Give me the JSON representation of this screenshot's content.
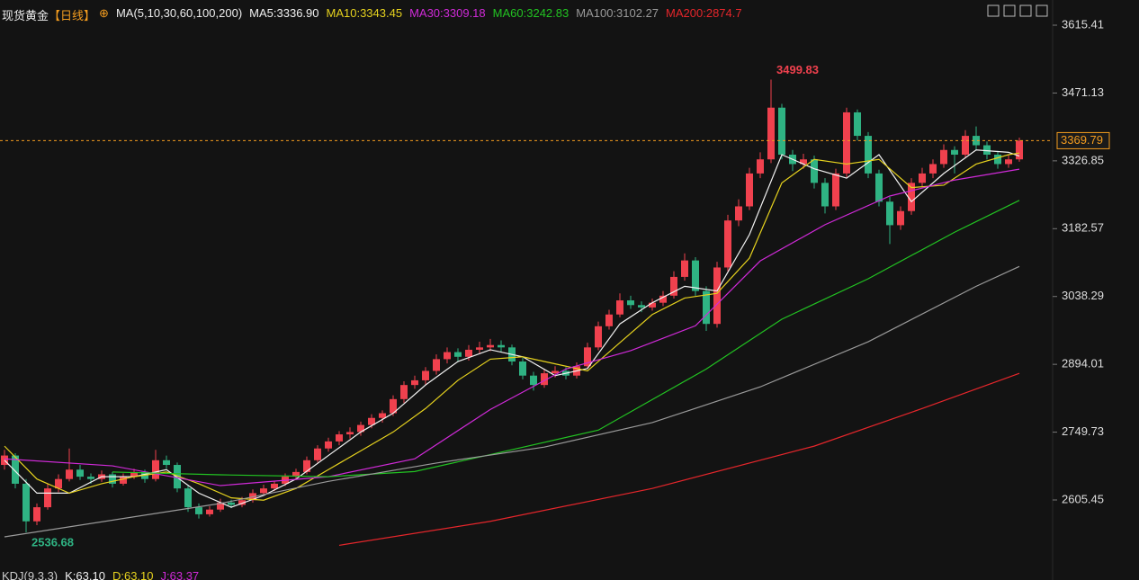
{
  "chart_data": {
    "type": "candlestick",
    "title": "现货黄金",
    "period": "【日线】",
    "indicator_label": "MA(5,10,30,60,100,200)",
    "ylim": [
      2463.9,
      3669.0
    ],
    "yticks": [
      3615.41,
      3471.13,
      3326.85,
      3182.57,
      3038.29,
      2894.01,
      2749.73,
      2605.45
    ],
    "up_color": "#f0414e",
    "down_color": "#2fb383",
    "candles": [
      [
        2680,
        2712,
        2670,
        2700
      ],
      [
        2700,
        2705,
        2630,
        2640
      ],
      [
        2640,
        2650,
        2536.68,
        2560
      ],
      [
        2560,
        2598,
        2552,
        2590
      ],
      [
        2590,
        2640,
        2585,
        2630
      ],
      [
        2630,
        2660,
        2622,
        2650
      ],
      [
        2650,
        2715,
        2645,
        2670
      ],
      [
        2670,
        2680,
        2648,
        2655
      ],
      [
        2655,
        2662,
        2640,
        2650
      ],
      [
        2650,
        2668,
        2644,
        2660
      ],
      [
        2660,
        2665,
        2632,
        2640
      ],
      [
        2640,
        2662,
        2636,
        2655
      ],
      [
        2655,
        2672,
        2650,
        2665
      ],
      [
        2665,
        2670,
        2642,
        2650
      ],
      [
        2650,
        2712,
        2645,
        2690
      ],
      [
        2690,
        2700,
        2672,
        2680
      ],
      [
        2680,
        2685,
        2622,
        2630
      ],
      [
        2630,
        2636,
        2580,
        2590
      ],
      [
        2590,
        2598,
        2566,
        2575
      ],
      [
        2575,
        2592,
        2570,
        2585
      ],
      [
        2585,
        2608,
        2580,
        2600
      ],
      [
        2600,
        2606,
        2588,
        2595
      ],
      [
        2595,
        2612,
        2590,
        2605
      ],
      [
        2605,
        2628,
        2600,
        2620
      ],
      [
        2620,
        2638,
        2614,
        2630
      ],
      [
        2630,
        2646,
        2624,
        2640
      ],
      [
        2640,
        2662,
        2635,
        2655
      ],
      [
        2655,
        2672,
        2648,
        2665
      ],
      [
        2665,
        2698,
        2660,
        2690
      ],
      [
        2690,
        2722,
        2685,
        2715
      ],
      [
        2715,
        2738,
        2708,
        2730
      ],
      [
        2730,
        2752,
        2722,
        2745
      ],
      [
        2745,
        2760,
        2736,
        2750
      ],
      [
        2750,
        2772,
        2742,
        2765
      ],
      [
        2765,
        2788,
        2758,
        2780
      ],
      [
        2780,
        2796,
        2770,
        2790
      ],
      [
        2790,
        2828,
        2784,
        2820
      ],
      [
        2820,
        2858,
        2812,
        2850
      ],
      [
        2850,
        2870,
        2842,
        2860
      ],
      [
        2860,
        2888,
        2850,
        2880
      ],
      [
        2880,
        2915,
        2872,
        2905
      ],
      [
        2905,
        2930,
        2896,
        2920
      ],
      [
        2920,
        2928,
        2900,
        2910
      ],
      [
        2910,
        2935,
        2902,
        2925
      ],
      [
        2925,
        2942,
        2916,
        2930
      ],
      [
        2930,
        2948,
        2922,
        2935
      ],
      [
        2935,
        2945,
        2920,
        2930
      ],
      [
        2930,
        2936,
        2892,
        2900
      ],
      [
        2900,
        2908,
        2862,
        2870
      ],
      [
        2870,
        2878,
        2838,
        2850
      ],
      [
        2850,
        2884,
        2844,
        2875
      ],
      [
        2875,
        2890,
        2866,
        2880
      ],
      [
        2880,
        2888,
        2862,
        2870
      ],
      [
        2870,
        2898,
        2864,
        2890
      ],
      [
        2890,
        2940,
        2884,
        2930
      ],
      [
        2930,
        2985,
        2924,
        2975
      ],
      [
        2975,
        3010,
        2968,
        3000
      ],
      [
        3000,
        3045,
        2994,
        3030
      ],
      [
        3030,
        3040,
        3012,
        3020
      ],
      [
        3020,
        3028,
        3005,
        3015
      ],
      [
        3015,
        3034,
        3008,
        3025
      ],
      [
        3025,
        3050,
        3018,
        3040
      ],
      [
        3040,
        3092,
        3034,
        3080
      ],
      [
        3080,
        3130,
        3072,
        3115
      ],
      [
        3115,
        3122,
        3040,
        3050
      ],
      [
        3050,
        3060,
        2965,
        2980
      ],
      [
        2980,
        3112,
        2972,
        3100
      ],
      [
        3100,
        3212,
        3092,
        3200
      ],
      [
        3200,
        3245,
        3188,
        3230
      ],
      [
        3230,
        3312,
        3222,
        3300
      ],
      [
        3300,
        3345,
        3290,
        3330
      ],
      [
        3330,
        3499.83,
        3322,
        3440
      ],
      [
        3440,
        3448,
        3330,
        3340
      ],
      [
        3340,
        3350,
        3305,
        3320
      ],
      [
        3320,
        3342,
        3310,
        3330
      ],
      [
        3330,
        3338,
        3268,
        3280
      ],
      [
        3280,
        3290,
        3215,
        3230
      ],
      [
        3230,
        3310,
        3222,
        3300
      ],
      [
        3300,
        3440,
        3292,
        3430
      ],
      [
        3430,
        3436,
        3370,
        3380
      ],
      [
        3380,
        3388,
        3290,
        3300
      ],
      [
        3300,
        3308,
        3230,
        3240
      ],
      [
        3240,
        3250,
        3150,
        3190
      ],
      [
        3190,
        3230,
        3180,
        3220
      ],
      [
        3220,
        3290,
        3212,
        3280
      ],
      [
        3280,
        3312,
        3272,
        3300
      ],
      [
        3300,
        3330,
        3290,
        3320
      ],
      [
        3320,
        3362,
        3312,
        3350
      ],
      [
        3350,
        3358,
        3300,
        3340
      ],
      [
        3340,
        3392,
        3332,
        3380
      ],
      [
        3380,
        3400,
        3350,
        3360
      ],
      [
        3360,
        3368,
        3330,
        3340
      ],
      [
        3340,
        3348,
        3310,
        3320
      ],
      [
        3320,
        3340,
        3312,
        3330
      ],
      [
        3330,
        3376,
        3325,
        3369.79
      ]
    ],
    "series": [
      {
        "name": "MA5:3336.90",
        "color": "#f2f2f2",
        "x": [
          0,
          3,
          6,
          9,
          12,
          15,
          18,
          21,
          24,
          27,
          30,
          33,
          36,
          39,
          42,
          45,
          48,
          51,
          54,
          57,
          60,
          63,
          66,
          69,
          72,
          75,
          78,
          81,
          84,
          87,
          90,
          93,
          94
        ],
        "values": [
          2690,
          2620,
          2620,
          2655,
          2655,
          2670,
          2620,
          2590,
          2615,
          2650,
          2700,
          2750,
          2790,
          2850,
          2900,
          2925,
          2910,
          2870,
          2885,
          2980,
          3025,
          3060,
          3050,
          3170,
          3340,
          3310,
          3290,
          3340,
          3240,
          3300,
          3350,
          3345,
          3336.9
        ]
      },
      {
        "name": "MA10:3343.45",
        "color": "#e6d21e",
        "x": [
          0,
          3,
          6,
          9,
          12,
          15,
          18,
          21,
          24,
          27,
          30,
          33,
          36,
          39,
          42,
          45,
          48,
          51,
          54,
          57,
          60,
          63,
          66,
          69,
          72,
          75,
          78,
          81,
          84,
          87,
          90,
          93,
          94
        ],
        "values": [
          2720,
          2650,
          2620,
          2640,
          2655,
          2665,
          2640,
          2610,
          2605,
          2630,
          2670,
          2710,
          2750,
          2800,
          2860,
          2905,
          2910,
          2895,
          2880,
          2940,
          3000,
          3035,
          3045,
          3120,
          3280,
          3330,
          3320,
          3330,
          3270,
          3275,
          3320,
          3340,
          3343.45
        ]
      },
      {
        "name": "MA30:3309.18",
        "color": "#d02ad8",
        "x": [
          0,
          10,
          20,
          30,
          38,
          45,
          52,
          58,
          64,
          70,
          76,
          82,
          88,
          94
        ],
        "values": [
          2693,
          2678,
          2636,
          2655,
          2693,
          2798,
          2884,
          2923,
          2976,
          3114,
          3191,
          3252,
          3286,
          3309.18
        ]
      },
      {
        "name": "MA60:3242.83",
        "color": "#22c322",
        "x": [
          10,
          20,
          30,
          38,
          45,
          55,
          65,
          72,
          80,
          88,
          94
        ],
        "values": [
          2665,
          2659,
          2655,
          2666,
          2702,
          2754,
          2884,
          2990,
          3076,
          3175,
          3242.83
        ]
      },
      {
        "name": "MA100:3102.27",
        "color": "#9a9a9a",
        "x": [
          0,
          20,
          30,
          40,
          50,
          60,
          70,
          80,
          90,
          94
        ],
        "values": [
          2527,
          2598,
          2645,
          2684,
          2718,
          2770,
          2846,
          2942,
          3060,
          3102.27
        ]
      },
      {
        "name": "MA200:2874.7",
        "color": "#e5262b",
        "x": [
          31,
          45,
          60,
          75,
          85,
          94
        ],
        "values": [
          2509,
          2560,
          2630,
          2720,
          2800,
          2874.7
        ]
      }
    ],
    "annotations": [
      {
        "text": "3499.83",
        "value": 3499.83,
        "candle": 71
      },
      {
        "text": "2536.68",
        "value": 2536.68,
        "candle": 2
      }
    ],
    "last_price": {
      "text": "3369.79",
      "value": 3369.79
    },
    "footer": [
      {
        "text": "KDJ(9,3,3)",
        "color": "#cccccc"
      },
      {
        "text": "K:63.10",
        "color": "#f2f2f2"
      },
      {
        "text": "D:63.10",
        "color": "#e6d21e"
      },
      {
        "text": "J:63.37",
        "color": "#d02ad8"
      }
    ]
  }
}
